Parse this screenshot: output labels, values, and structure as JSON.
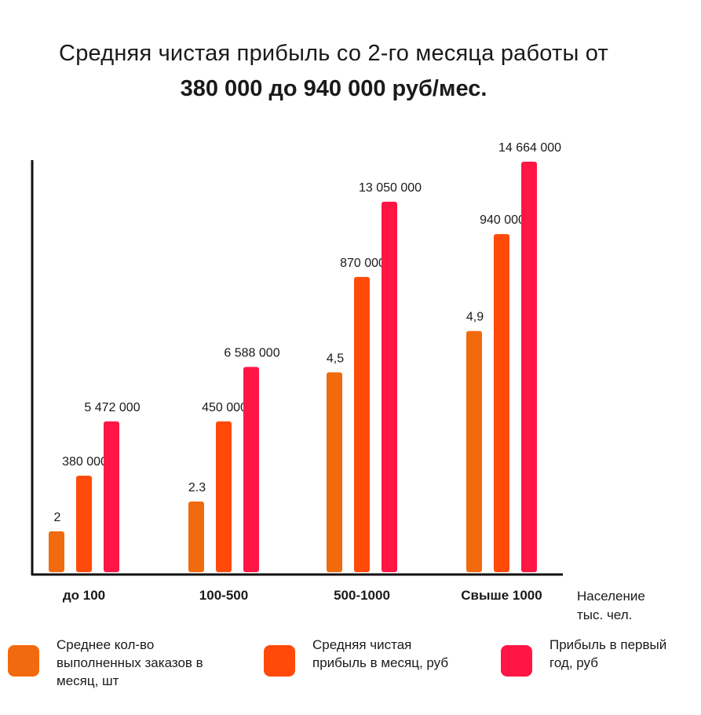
{
  "title": {
    "line1": "Средняя чистая прибыль со 2-го месяца работы от",
    "line2": "380 000 до 940 000 руб/мес."
  },
  "chart_data": {
    "type": "bar",
    "title": "Средняя чистая прибыль со 2-го месяца работы от 380 000 до 940 000 руб/мес.",
    "categories": [
      "до 100",
      "100-500",
      "500-1000",
      "Свыше 1000"
    ],
    "xlabel": "Население тыс. чел.",
    "xlabel_lines": [
      "Население",
      "тыс. чел."
    ],
    "ylabel": "",
    "grid": false,
    "legend_position": "bottom",
    "series": [
      {
        "name": "Среднее кол-во выполненных заказов в месяц, шт",
        "legend_lines": [
          "Среднее кол-во",
          "выполненных заказов в",
          "месяц, шт"
        ],
        "color": "#F26A0E",
        "values": [
          2,
          2.3,
          4.5,
          4.9
        ],
        "labels": [
          "2",
          "2.3",
          "4,5",
          "4,9"
        ],
        "display_fraction": [
          0.096,
          0.169,
          0.485,
          0.586
        ]
      },
      {
        "name": "Средняя чистая прибыль в месяц, руб",
        "legend_lines": [
          "Средняя чистая",
          "прибыль в месяц, руб"
        ],
        "color": "#FF4A0A",
        "values": [
          380000,
          450000,
          870000,
          940000
        ],
        "labels": [
          "380 000",
          "450 000",
          "870 000",
          "940 000"
        ],
        "display_fraction": [
          0.232,
          0.365,
          0.718,
          0.823
        ]
      },
      {
        "name": "Прибыль в первый год, руб",
        "legend_lines": [
          "Прибыль в первый",
          "год, руб"
        ],
        "color": "#FF1645",
        "values": [
          5472000,
          6588000,
          13050000,
          14664000
        ],
        "labels": [
          "5 472 000",
          "6 588 000",
          "13 050 000",
          "14 664 000"
        ],
        "display_fraction": [
          0.365,
          0.498,
          0.902,
          1.0
        ]
      }
    ]
  }
}
